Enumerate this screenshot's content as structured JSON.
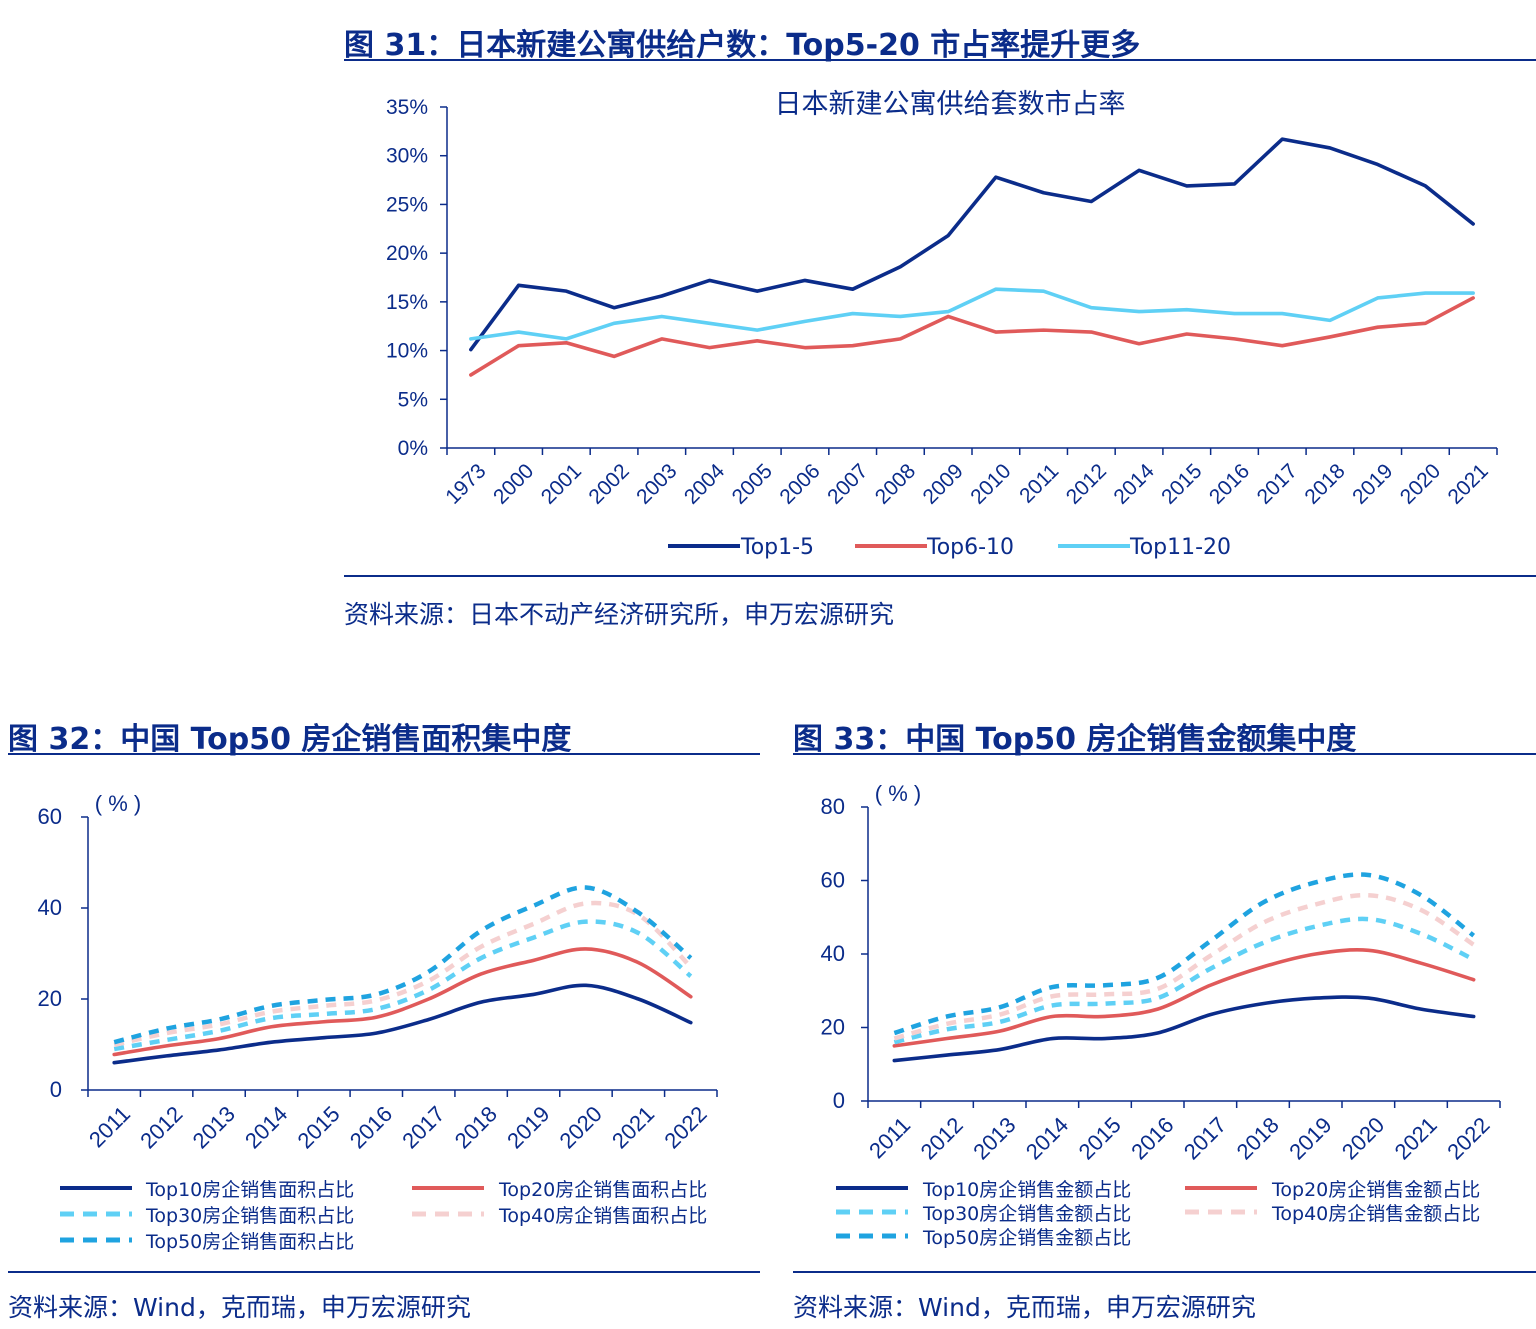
{
  "colors": {
    "navy": "#0b2c8a",
    "red": "#e05a5a",
    "lightblue": "#5fd0f5",
    "skyblue": "#4fc8f5",
    "pink": "#f5d0d0",
    "deepblue": "#1fa3e0"
  },
  "fig31": {
    "title": "图 31：日本新建公寓供给户数：Top5-20 市占率提升更多",
    "source": "资料来源：日本不动产经济研究所，申万宏源研究"
  },
  "fig32": {
    "title": "图 32：中国 Top50 房企销售面积集中度",
    "source": "资料来源：Wind，克而瑞，申万宏源研究"
  },
  "fig33": {
    "title": "图 33：中国 Top50 房企销售金额集中度",
    "source": "资料来源：Wind，克而瑞，申万宏源研究"
  },
  "chart_data": [
    {
      "id": "c31",
      "type": "line",
      "title": "日本新建公寓供给套数市占率",
      "categories": [
        "1973",
        "2000",
        "2001",
        "2002",
        "2003",
        "2004",
        "2005",
        "2006",
        "2007",
        "2008",
        "2009",
        "2010",
        "2011",
        "2012",
        "2014",
        "2015",
        "2016",
        "2017",
        "2018",
        "2019",
        "2020",
        "2021"
      ],
      "ylim": [
        0,
        35
      ],
      "yticks": [
        "0%",
        "5%",
        "10%",
        "15%",
        "20%",
        "25%",
        "30%",
        "35%"
      ],
      "ytick_values": [
        0,
        5,
        10,
        15,
        20,
        25,
        30,
        35
      ],
      "series": [
        {
          "name": "Top1-5",
          "color": "#0b2c8a",
          "dash": "",
          "values": [
            10.1,
            16.7,
            16.1,
            14.4,
            15.6,
            17.2,
            16.1,
            17.2,
            16.3,
            18.6,
            21.8,
            27.8,
            26.2,
            25.3,
            28.5,
            26.9,
            27.1,
            31.7,
            30.8,
            29.1,
            26.9,
            23.0
          ]
        },
        {
          "name": "Top6-10",
          "color": "#e05a5a",
          "dash": "",
          "values": [
            7.5,
            10.5,
            10.8,
            9.4,
            11.2,
            10.3,
            11.0,
            10.3,
            10.5,
            11.2,
            13.5,
            11.9,
            12.1,
            11.9,
            10.7,
            11.7,
            11.2,
            10.5,
            11.4,
            12.4,
            12.8,
            15.4
          ]
        },
        {
          "name": "Top11-20",
          "color": "#5fd0f5",
          "dash": "",
          "values": [
            11.2,
            11.9,
            11.2,
            12.8,
            13.5,
            12.8,
            12.1,
            13.0,
            13.8,
            13.5,
            14.0,
            16.3,
            16.1,
            14.4,
            14.0,
            14.2,
            13.8,
            13.8,
            13.1,
            15.4,
            15.9,
            15.9
          ]
        }
      ]
    },
    {
      "id": "c32",
      "type": "line",
      "title": "",
      "unit": "( % )",
      "categories": [
        "2011",
        "2012",
        "2013",
        "2014",
        "2015",
        "2016",
        "2017",
        "2018",
        "2019",
        "2020",
        "2021",
        "2022"
      ],
      "ylim": [
        0,
        60
      ],
      "yticks": [
        "0",
        "20",
        "40",
        "60"
      ],
      "ytick_values": [
        0,
        20,
        40,
        60
      ],
      "series": [
        {
          "name": "Top10房企销售面积占比",
          "color": "#0b2c8a",
          "dash": "",
          "values": [
            6.0,
            7.5,
            8.8,
            10.5,
            11.5,
            12.5,
            15.5,
            19.3,
            21.0,
            23.0,
            20.0,
            14.8
          ]
        },
        {
          "name": "Top20房企销售面积占比",
          "color": "#e05a5a",
          "dash": "",
          "values": [
            7.8,
            9.7,
            11.3,
            13.9,
            15.0,
            16.0,
            20.0,
            25.5,
            28.5,
            31.0,
            28.0,
            20.5
          ]
        },
        {
          "name": "Top30房企销售面积占比",
          "color": "#5fd0f5",
          "dash": "10,8",
          "values": [
            9.0,
            11.0,
            13.0,
            15.8,
            16.7,
            17.8,
            22.0,
            29.0,
            33.5,
            37.0,
            34.5,
            25.0
          ]
        },
        {
          "name": "Top40房企销售面积占比",
          "color": "#f5d0d0",
          "dash": "10,8",
          "values": [
            9.9,
            12.5,
            14.4,
            17.2,
            18.5,
            19.7,
            24.0,
            31.5,
            36.5,
            41.0,
            38.5,
            27.0
          ]
        },
        {
          "name": "Top50房企销售面积占比",
          "color": "#1fa3e0",
          "dash": "10,8",
          "values": [
            10.5,
            13.5,
            15.5,
            18.5,
            19.8,
            21.0,
            26.0,
            35.0,
            40.5,
            44.5,
            39.0,
            29.0
          ]
        }
      ]
    },
    {
      "id": "c33",
      "type": "line",
      "title": "",
      "unit": "( % )",
      "categories": [
        "2011",
        "2012",
        "2013",
        "2014",
        "2015",
        "2016",
        "2017",
        "2018",
        "2019",
        "2020",
        "2021",
        "2022"
      ],
      "ylim": [
        0,
        80
      ],
      "yticks": [
        "0",
        "20",
        "40",
        "60",
        "80"
      ],
      "ytick_values": [
        0,
        20,
        40,
        60,
        80
      ],
      "series": [
        {
          "name": "Top10房企销售金额占比",
          "color": "#0b2c8a",
          "dash": "",
          "values": [
            11.0,
            12.5,
            14.0,
            17.0,
            17.0,
            18.5,
            23.5,
            26.5,
            28.0,
            28.0,
            25.0,
            23.0
          ]
        },
        {
          "name": "Top20房企销售金额占比",
          "color": "#e05a5a",
          "dash": "",
          "values": [
            15.0,
            17.0,
            19.0,
            23.0,
            23.0,
            25.0,
            31.5,
            36.5,
            40.0,
            41.0,
            37.5,
            33.0
          ]
        },
        {
          "name": "Top30房企销售金额占比",
          "color": "#5fd0f5",
          "dash": "10,8",
          "values": [
            16.0,
            19.5,
            21.5,
            26.0,
            26.5,
            28.0,
            36.0,
            43.0,
            47.5,
            49.5,
            45.5,
            38.5
          ]
        },
        {
          "name": "Top40房企销售金额占比",
          "color": "#f5d0d0",
          "dash": "10,8",
          "values": [
            17.0,
            21.0,
            23.5,
            28.5,
            29.0,
            30.5,
            39.5,
            48.5,
            53.5,
            56.0,
            52.0,
            42.5
          ]
        },
        {
          "name": "Top50房企销售金额占比",
          "color": "#1fa3e0",
          "dash": "10,8",
          "values": [
            18.5,
            23.0,
            25.5,
            31.0,
            31.5,
            33.5,
            43.5,
            54.0,
            59.5,
            61.5,
            56.0,
            45.0
          ]
        }
      ]
    }
  ]
}
